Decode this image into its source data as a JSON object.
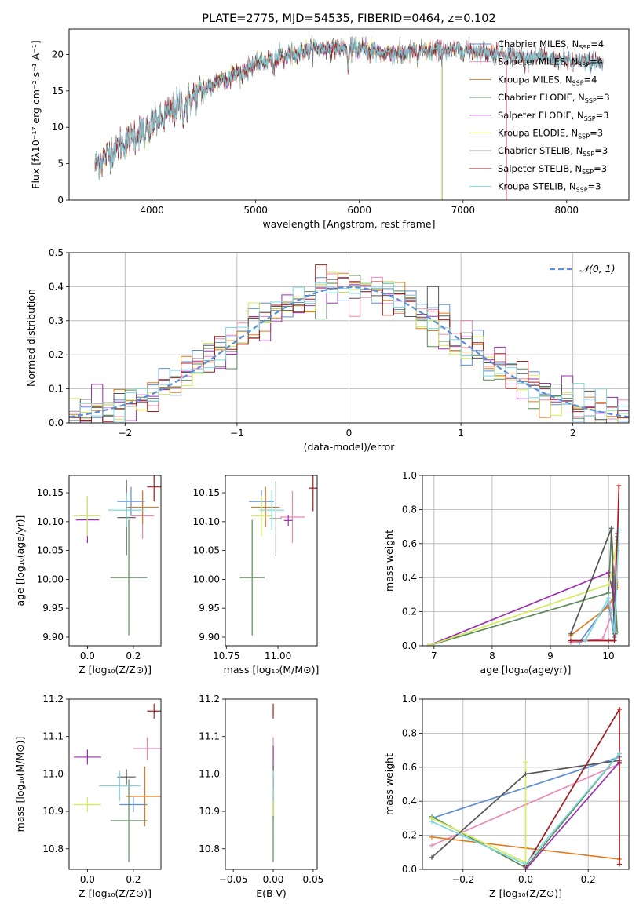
{
  "colors": {
    "chabrier_miles": "#5b8ed6",
    "salpeter_miles": "#e88ab8",
    "kroupa_miles": "#e07b1e",
    "chabrier_elodie": "#5a8a5a",
    "salpeter_elodie": "#9b2fb0",
    "kroupa_elodie": "#d4ec5a",
    "chabrier_stelib": "#555555",
    "salpeter_stelib": "#a51c1c",
    "kroupa_stelib": "#7fd8e0",
    "gauss": "#5b8ed6",
    "grid": "#b0b0b0"
  },
  "chart_data": [
    {
      "id": "spectrum",
      "type": "line",
      "title": "PLATE=2775, MJD=54535, FIBERID=0464, z=0.102",
      "xlabel": "wavelength [Angstrom, rest frame]",
      "ylabel": "Flux [fλ10⁻¹⁷ erg cm⁻² s⁻¹ A⁻¹]",
      "xlim": [
        3200,
        8600
      ],
      "ylim": [
        0,
        23.5
      ],
      "xticks": [
        4000,
        5000,
        6000,
        7000,
        8000
      ],
      "yticks": [
        0,
        5,
        10,
        15,
        20
      ],
      "legend_position": "right",
      "grid": false,
      "continuum": {
        "x": [
          3450,
          3600,
          3800,
          4000,
          4200,
          4400,
          4600,
          4800,
          5000,
          5200,
          5400,
          5600,
          5800,
          6000,
          6200,
          6400,
          6600,
          6800,
          7000,
          7200,
          7400,
          7600,
          7800,
          8000,
          8200,
          8350
        ],
        "y": [
          4.8,
          6.5,
          8.5,
          10.5,
          12.3,
          14.2,
          16.0,
          17.4,
          18.7,
          19.6,
          20.3,
          20.8,
          21.0,
          20.8,
          20.3,
          20.1,
          20.4,
          20.6,
          20.6,
          20.4,
          20.0,
          19.7,
          19.4,
          19.1,
          19.0,
          18.8
        ]
      },
      "series": [
        {
          "name": "Chabrier MILES, N",
          "sub": "SSP",
          "suffix": "=4",
          "color_key": "chabrier_miles"
        },
        {
          "name": "Salpeter MILES, N",
          "sub": "SSP",
          "suffix": "=4",
          "color_key": "salpeter_miles"
        },
        {
          "name": "Kroupa MILES, N",
          "sub": "SSP",
          "suffix": "=4",
          "color_key": "kroupa_miles"
        },
        {
          "name": "Chabrier ELODIE, N",
          "sub": "SSP",
          "suffix": "=3",
          "color_key": "chabrier_elodie"
        },
        {
          "name": "Salpeter ELODIE, N",
          "sub": "SSP",
          "suffix": "=3",
          "color_key": "salpeter_elodie"
        },
        {
          "name": "Kroupa ELODIE, N",
          "sub": "SSP",
          "suffix": "=3",
          "color_key": "kroupa_elodie"
        },
        {
          "name": "Chabrier STELIB, N",
          "sub": "SSP",
          "suffix": "=3",
          "color_key": "chabrier_stelib"
        },
        {
          "name": "Salpeter STELIB, N",
          "sub": "SSP",
          "suffix": "=3",
          "color_key": "salpeter_stelib"
        },
        {
          "name": "Kroupa STELIB, N",
          "sub": "SSP",
          "suffix": "=3",
          "color_key": "kroupa_stelib"
        }
      ]
    },
    {
      "id": "residuals",
      "type": "bar",
      "xlabel": "(data-model)/error",
      "ylabel": "Normed distribution",
      "xlim": [
        -2.5,
        2.5
      ],
      "ylim": [
        0,
        0.5
      ],
      "xticks": [
        -2,
        -1,
        0,
        1,
        2
      ],
      "yticks": [
        0.0,
        0.1,
        0.2,
        0.3,
        0.4,
        0.5
      ],
      "grid": true,
      "legend": "𝒩(0, 1)",
      "legend_position": "top-right",
      "bin_width": 0.1
    },
    {
      "id": "age_vs_Z",
      "type": "scatter",
      "xlabel": "Z [log₁₀(Z/Z⊙)]",
      "ylabel": "age  [log₁₀(age/yr)]",
      "xlim": [
        -0.08,
        0.32
      ],
      "ylim": [
        9.885,
        10.18
      ],
      "xticks": [
        0.0,
        0.2
      ],
      "yticks": [
        9.9,
        9.95,
        10.0,
        10.05,
        10.1,
        10.15
      ],
      "points": [
        {
          "x": 0.19,
          "y": 10.135,
          "xe": 0.06,
          "ye": 0.025,
          "c": "chabrier_miles"
        },
        {
          "x": 0.24,
          "y": 10.11,
          "xe": 0.05,
          "ye": 0.04,
          "c": "salpeter_miles"
        },
        {
          "x": 0.24,
          "y": 10.125,
          "xe": 0.07,
          "ye": 0.03,
          "c": "kroupa_miles"
        },
        {
          "x": 0.18,
          "y": 10.003,
          "xe": 0.08,
          "ye": 0.1,
          "c": "chabrier_elodie"
        },
        {
          "x": 0.0,
          "y": 10.103,
          "xe": 0.05,
          "ye": 0.04,
          "c": "salpeter_elodie"
        },
        {
          "x": 0.0,
          "y": 10.11,
          "xe": 0.06,
          "ye": 0.035,
          "c": "kroupa_elodie"
        },
        {
          "x": 0.17,
          "y": 10.107,
          "xe": 0.04,
          "ye": 0.065,
          "c": "chabrier_stelib"
        },
        {
          "x": 0.29,
          "y": 10.16,
          "xe": 0.03,
          "ye": 0.025,
          "c": "salpeter_stelib"
        },
        {
          "x": 0.17,
          "y": 10.12,
          "xe": 0.08,
          "ye": 0.03,
          "c": "kroupa_stelib"
        }
      ]
    },
    {
      "id": "age_vs_mass",
      "type": "scatter",
      "xlabel": "mass [log₁₀(M/M⊙)]",
      "ylabel": "",
      "xlim": [
        10.745,
        11.19
      ],
      "ylim": [
        9.885,
        10.18
      ],
      "xticks": [
        10.75,
        11.0
      ],
      "yticks": [
        9.9,
        9.95,
        10.0,
        10.05,
        10.1,
        10.15
      ],
      "points": [
        {
          "x": 10.92,
          "y": 10.135,
          "xe": 0.06,
          "ye": 0.02,
          "c": "chabrier_miles"
        },
        {
          "x": 11.07,
          "y": 10.108,
          "xe": 0.06,
          "ye": 0.045,
          "c": "salpeter_miles"
        },
        {
          "x": 10.94,
          "y": 10.125,
          "xe": 0.07,
          "ye": 0.035,
          "c": "kroupa_miles"
        },
        {
          "x": 10.875,
          "y": 10.003,
          "xe": 0.06,
          "ye": 0.1,
          "c": "chabrier_elodie"
        },
        {
          "x": 11.05,
          "y": 10.102,
          "xe": 0.02,
          "ye": 0.01,
          "c": "salpeter_elodie"
        },
        {
          "x": 10.92,
          "y": 10.11,
          "xe": 0.05,
          "ye": 0.035,
          "c": "kroupa_elodie"
        },
        {
          "x": 10.99,
          "y": 10.105,
          "xe": 0.03,
          "ye": 0.065,
          "c": "chabrier_stelib"
        },
        {
          "x": 11.17,
          "y": 10.158,
          "xe": 0.02,
          "ye": 0.04,
          "c": "salpeter_stelib"
        },
        {
          "x": 10.97,
          "y": 10.12,
          "xe": 0.06,
          "ye": 0.035,
          "c": "kroupa_stelib"
        }
      ]
    },
    {
      "id": "mw_vs_age",
      "type": "line",
      "xlabel": "age  [log₁₀(age/yr)]",
      "ylabel": "mass weight",
      "xlim": [
        6.8,
        10.35
      ],
      "ylim": [
        0,
        1.0
      ],
      "xticks": [
        7,
        8,
        9,
        10
      ],
      "yticks": [
        0.0,
        0.2,
        0.4,
        0.6,
        0.8,
        1.0
      ],
      "grid": true,
      "series": [
        {
          "c": "chabrier_miles",
          "x": [
            9.5,
            10.0,
            10.1,
            10.15
          ],
          "y": [
            0.02,
            0.25,
            0.05,
            0.66
          ]
        },
        {
          "c": "salpeter_miles",
          "x": [
            9.35,
            9.9,
            10.05,
            10.15
          ],
          "y": [
            0.02,
            0.04,
            0.18,
            0.62
          ]
        },
        {
          "c": "kroupa_miles",
          "x": [
            9.35,
            10.0,
            10.15,
            10.15
          ],
          "y": [
            0.06,
            0.23,
            0.34,
            0.38
          ]
        },
        {
          "c": "chabrier_elodie",
          "x": [
            6.9,
            10.0,
            10.05,
            10.15
          ],
          "y": [
            0.0,
            0.31,
            0.68,
            0.08
          ]
        },
        {
          "c": "salpeter_elodie",
          "x": [
            6.9,
            10.0,
            10.1,
            10.15
          ],
          "y": [
            0.0,
            0.43,
            0.27,
            0.56
          ]
        },
        {
          "c": "kroupa_elodie",
          "x": [
            6.9,
            10.0,
            10.05,
            10.15
          ],
          "y": [
            0.0,
            0.36,
            0.42,
            0.62
          ]
        },
        {
          "c": "chabrier_stelib",
          "x": [
            9.35,
            10.05,
            10.1,
            10.15
          ],
          "y": [
            0.07,
            0.69,
            0.07,
            0.64
          ]
        },
        {
          "c": "salpeter_stelib",
          "x": [
            9.35,
            10.0,
            10.1,
            10.18
          ],
          "y": [
            0.03,
            0.03,
            0.03,
            0.94
          ]
        },
        {
          "c": "kroupa_stelib",
          "x": [
            9.6,
            10.0,
            10.1,
            10.18
          ],
          "y": [
            0.03,
            0.28,
            0.08,
            0.68
          ]
        }
      ]
    },
    {
      "id": "mass_vs_Z",
      "type": "scatter",
      "xlabel": "Z [log₁₀(Z/Z⊙)]",
      "ylabel": "mass [log₁₀(M/M⊙)]",
      "xlim": [
        -0.08,
        0.32
      ],
      "ylim": [
        10.745,
        11.2
      ],
      "xticks": [
        0.0,
        0.2
      ],
      "yticks": [
        10.8,
        10.9,
        11.0,
        11.1,
        11.2
      ],
      "points": [
        {
          "x": 0.2,
          "y": 10.918,
          "xe": 0.06,
          "ye": 0.02,
          "c": "chabrier_miles"
        },
        {
          "x": 0.26,
          "y": 11.068,
          "xe": 0.06,
          "ye": 0.03,
          "c": "salpeter_miles"
        },
        {
          "x": 0.25,
          "y": 10.94,
          "xe": 0.08,
          "ye": 0.08,
          "c": "kroupa_miles"
        },
        {
          "x": 0.18,
          "y": 10.875,
          "xe": 0.08,
          "ye": 0.11,
          "c": "chabrier_elodie"
        },
        {
          "x": 0.0,
          "y": 11.045,
          "xe": 0.06,
          "ye": 0.02,
          "c": "salpeter_elodie"
        },
        {
          "x": 0.0,
          "y": 10.918,
          "xe": 0.06,
          "ye": 0.02,
          "c": "kroupa_elodie"
        },
        {
          "x": 0.17,
          "y": 10.992,
          "xe": 0.04,
          "ye": 0.02,
          "c": "chabrier_stelib"
        },
        {
          "x": 0.29,
          "y": 11.168,
          "xe": 0.03,
          "ye": 0.02,
          "c": "salpeter_stelib"
        },
        {
          "x": 0.14,
          "y": 10.968,
          "xe": 0.09,
          "ye": 0.04,
          "c": "kroupa_stelib"
        }
      ]
    },
    {
      "id": "mass_vs_ebv",
      "type": "scatter",
      "xlabel": "E(B-V)",
      "ylabel": "",
      "xlim": [
        -0.06,
        0.055
      ],
      "ylim": [
        10.745,
        11.2
      ],
      "xticks": [
        -0.05,
        0.0,
        0.05
      ],
      "yticks": [
        10.8,
        10.9,
        11.0,
        11.1,
        11.2
      ],
      "points": [
        {
          "x": 0.0,
          "y": 10.918,
          "xe": 0.0,
          "ye": 0.02,
          "c": "chabrier_miles"
        },
        {
          "x": 0.0,
          "y": 11.068,
          "xe": 0.0,
          "ye": 0.03,
          "c": "salpeter_miles"
        },
        {
          "x": 0.0,
          "y": 10.94,
          "xe": 0.0,
          "ye": 0.06,
          "c": "kroupa_miles"
        },
        {
          "x": 0.0,
          "y": 10.875,
          "xe": 0.0,
          "ye": 0.11,
          "c": "chabrier_elodie"
        },
        {
          "x": 0.0,
          "y": 11.045,
          "xe": 0.0,
          "ye": 0.03,
          "c": "salpeter_elodie"
        },
        {
          "x": 0.0,
          "y": 10.918,
          "xe": 0.0,
          "ye": 0.03,
          "c": "kroupa_elodie"
        },
        {
          "x": 0.0,
          "y": 10.992,
          "xe": 0.0,
          "ye": 0.03,
          "c": "chabrier_stelib"
        },
        {
          "x": 0.0,
          "y": 11.168,
          "xe": 0.0,
          "ye": 0.02,
          "c": "salpeter_stelib"
        },
        {
          "x": 0.0,
          "y": 10.968,
          "xe": 0.0,
          "ye": 0.04,
          "c": "kroupa_stelib"
        }
      ]
    },
    {
      "id": "mw_vs_Z",
      "type": "line",
      "xlabel": "Z [log₁₀(Z/Z⊙)]",
      "ylabel": "mass weight",
      "xlim": [
        -0.33,
        0.33
      ],
      "ylim": [
        0,
        1.0
      ],
      "xticks": [
        -0.2,
        0.0,
        0.2
      ],
      "yticks": [
        0.0,
        0.2,
        0.4,
        0.6,
        0.8,
        1.0
      ],
      "grid": true,
      "series": [
        {
          "c": "chabrier_miles",
          "x": [
            -0.3,
            0.3
          ],
          "y": [
            0.3,
            0.66
          ]
        },
        {
          "c": "salpeter_miles",
          "x": [
            -0.3,
            0.0,
            0.3
          ],
          "y": [
            0.14,
            0.38,
            0.62
          ]
        },
        {
          "c": "kroupa_miles",
          "x": [
            -0.3,
            0.3
          ],
          "y": [
            0.19,
            0.06
          ]
        },
        {
          "c": "chabrier_elodie",
          "x": [
            -0.3,
            0.0,
            0.3
          ],
          "y": [
            0.31,
            0.01,
            0.68
          ]
        },
        {
          "c": "salpeter_elodie",
          "x": [
            0.0,
            0.3
          ],
          "y": [
            0.0,
            0.63
          ]
        },
        {
          "c": "kroupa_elodie",
          "x": [
            -0.3,
            0.0,
            0.0
          ],
          "y": [
            0.3,
            0.04,
            0.63
          ]
        },
        {
          "c": "chabrier_stelib",
          "x": [
            -0.3,
            0.0,
            0.3
          ],
          "y": [
            0.07,
            0.56,
            0.64
          ]
        },
        {
          "c": "salpeter_stelib",
          "x": [
            0.0,
            0.3,
            0.3
          ],
          "y": [
            0.02,
            0.94,
            0.03
          ]
        },
        {
          "c": "kroupa_stelib",
          "x": [
            -0.3,
            0.0,
            0.3
          ],
          "y": [
            0.28,
            0.03,
            0.68
          ]
        }
      ]
    }
  ]
}
